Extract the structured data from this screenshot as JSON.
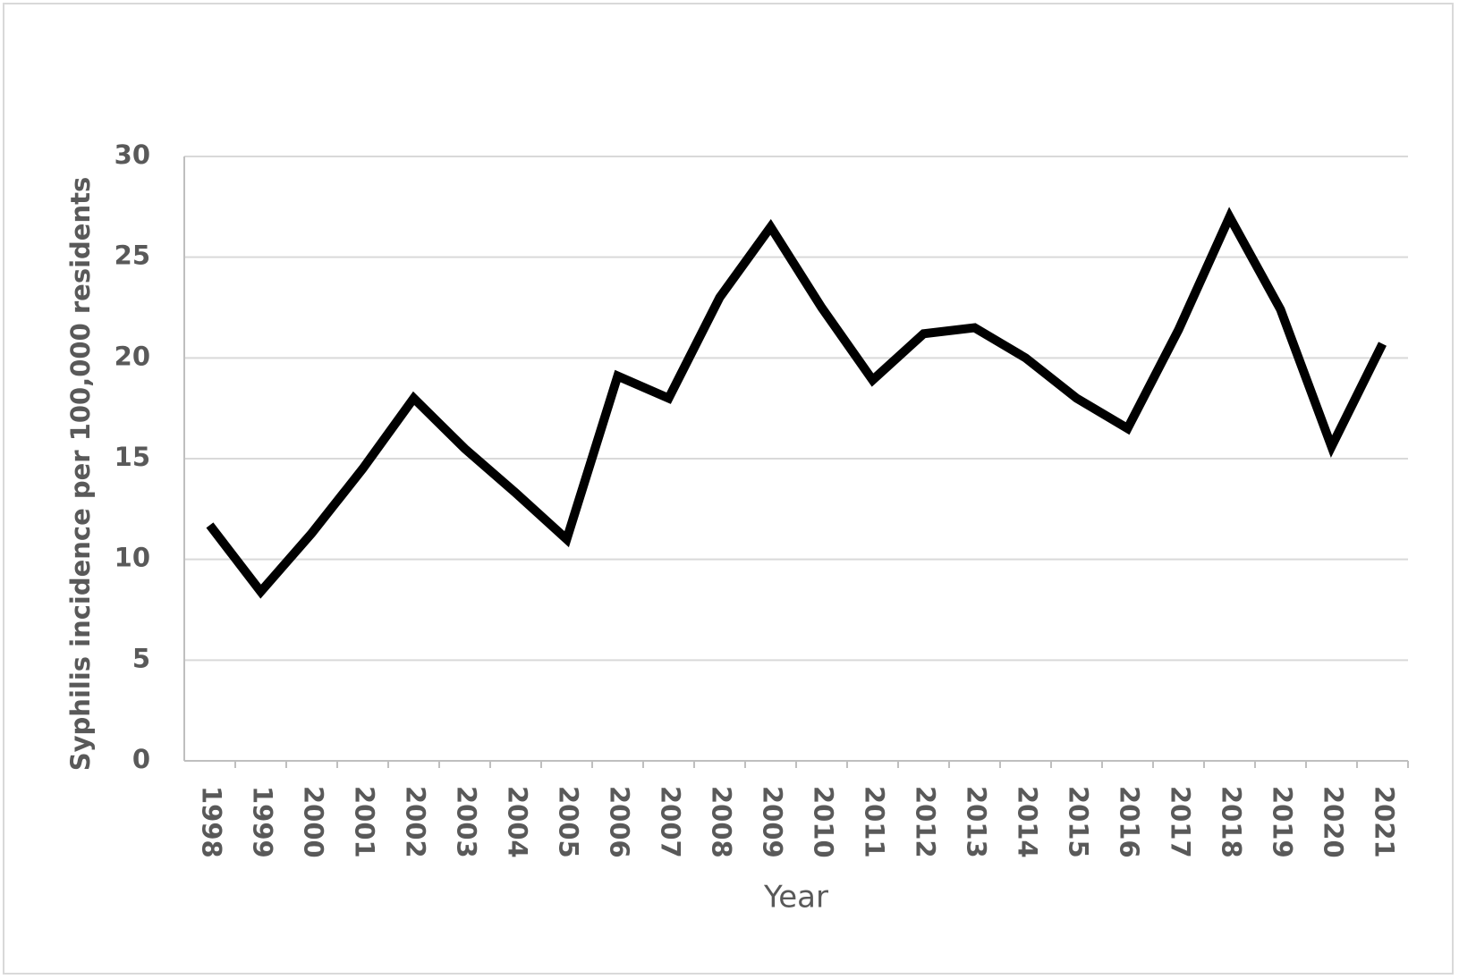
{
  "chart_data": {
    "type": "line",
    "x_label": "Year",
    "y_label": "Syphilis incidence per 100,000 residents",
    "categories": [
      "1998",
      "1999",
      "2000",
      "2001",
      "2002",
      "2003",
      "2004",
      "2005",
      "2006",
      "2007",
      "2008",
      "2009",
      "2010",
      "2011",
      "2012",
      "2013",
      "2014",
      "2015",
      "2016",
      "2017",
      "2018",
      "2019",
      "2020",
      "2021"
    ],
    "values": [
      11.7,
      8.4,
      11.3,
      14.5,
      18.0,
      15.5,
      13.3,
      11.0,
      19.1,
      18.0,
      23.0,
      26.5,
      22.5,
      18.9,
      21.2,
      21.5,
      20.0,
      18.0,
      16.5,
      21.4,
      27.0,
      22.4,
      15.6,
      20.7
    ],
    "color": "#000000",
    "ylim": [
      0,
      30
    ],
    "yticks": [
      0,
      5,
      10,
      15,
      20,
      25,
      30
    ],
    "grid": true
  }
}
